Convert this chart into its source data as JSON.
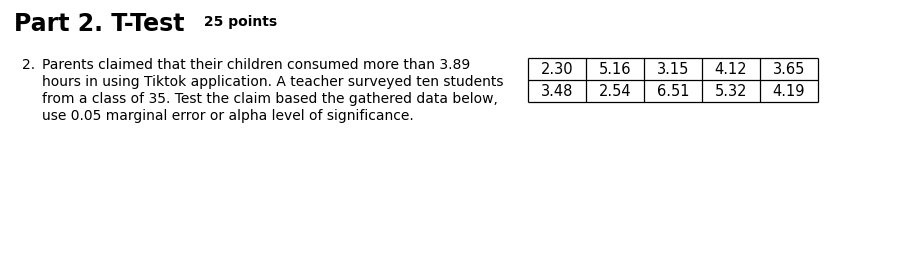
{
  "title_bold": "Part 2. T-Test",
  "title_normal": " 25 points",
  "question_number": "2.",
  "question_lines": [
    "Parents claimed that their children consumed more than 3.89",
    "hours in using Tiktok application. A teacher surveyed ten students",
    "from a class of 35. Test the claim based the gathered data below,",
    "use 0.05 marginal error or alpha level of significance."
  ],
  "table_row1": [
    "2.30",
    "5.16",
    "3.15",
    "4.12",
    "3.65"
  ],
  "table_row2": [
    "3.48",
    "2.54",
    "6.51",
    "5.32",
    "4.19"
  ],
  "bg_color": "#ffffff",
  "text_color": "#000000",
  "title_fontsize": 17,
  "subtitle_fontsize": 10,
  "body_fontsize": 10,
  "table_fontsize": 10.5,
  "fig_width": 9.19,
  "fig_height": 2.54,
  "dpi": 100
}
